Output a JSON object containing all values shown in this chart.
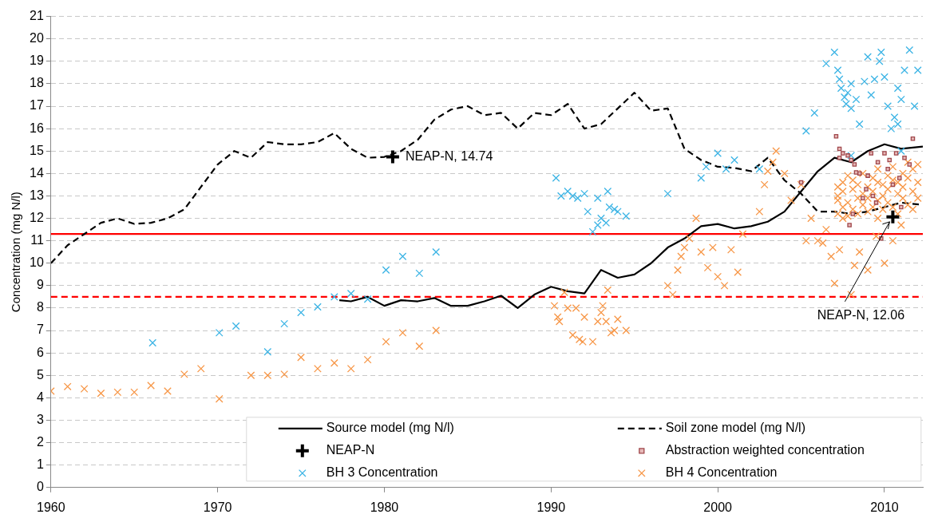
{
  "chart_data": {
    "type": "scatter",
    "ylabel": "Concentration (mg N/l)",
    "xlim": [
      1960,
      2012.3
    ],
    "xticks": [
      1960,
      1970,
      1980,
      1990,
      2000,
      2010
    ],
    "ylim": [
      0,
      21
    ],
    "yticks": [
      0,
      1,
      2,
      3,
      4,
      5,
      6,
      7,
      8,
      9,
      10,
      11,
      12,
      13,
      14,
      15,
      16,
      17,
      18,
      19,
      20,
      21
    ],
    "grid": "y",
    "legend": "bottom",
    "series": [
      {
        "name": "Source model (mg N/l)",
        "type": "line",
        "color": "#000000",
        "line_style": "solid",
        "marker": "none",
        "x": [
          1977.3,
          1978,
          1979,
          1980,
          1981,
          1982,
          1983,
          1984,
          1985,
          1986,
          1987,
          1988,
          1989,
          1990,
          1991,
          1992,
          1993,
          1994,
          1995,
          1996,
          1997,
          1998,
          1999,
          2000,
          2001,
          2002,
          2003,
          2004,
          2005,
          2006,
          2007,
          2008,
          2009,
          2010,
          2011,
          2012.3
        ],
        "values": [
          8.35,
          8.3,
          8.5,
          8.1,
          8.35,
          8.3,
          8.45,
          8.1,
          8.1,
          8.3,
          8.55,
          8.0,
          8.6,
          8.95,
          8.75,
          8.65,
          9.7,
          9.35,
          9.5,
          10.0,
          10.7,
          11.1,
          11.65,
          11.75,
          11.55,
          11.65,
          11.85,
          12.3,
          13.2,
          14.1,
          14.7,
          14.5,
          15.0,
          15.3,
          15.1,
          15.2
        ]
      },
      {
        "name": "Soil zone model (mg N/l)",
        "type": "line",
        "color": "#000000",
        "line_style": "dashed",
        "marker": "none",
        "x": [
          1960,
          1961,
          1962,
          1963,
          1964,
          1965,
          1966,
          1967,
          1968,
          1969,
          1970,
          1971,
          1972,
          1973,
          1974,
          1975,
          1976,
          1977,
          1978,
          1979,
          1980,
          1981,
          1982,
          1983,
          1984,
          1985,
          1986,
          1987,
          1988,
          1989,
          1990,
          1991,
          1992,
          1993,
          1994,
          1995,
          1996,
          1997,
          1998,
          1999,
          2000,
          2001,
          2002,
          2003,
          2004,
          2005,
          2006,
          2007,
          2008,
          2009,
          2010,
          2011,
          2012.3
        ],
        "values": [
          10.0,
          10.8,
          11.3,
          11.8,
          12.0,
          11.75,
          11.8,
          12.0,
          12.4,
          13.4,
          14.4,
          15.0,
          14.7,
          15.4,
          15.3,
          15.3,
          15.4,
          15.8,
          15.1,
          14.7,
          14.74,
          15.0,
          15.5,
          16.4,
          16.85,
          17.0,
          16.6,
          16.7,
          16.0,
          16.7,
          16.6,
          17.1,
          16.0,
          16.2,
          16.9,
          17.6,
          16.8,
          16.9,
          15.1,
          14.6,
          14.3,
          14.25,
          14.1,
          14.7,
          13.7,
          13.1,
          12.3,
          12.3,
          12.2,
          12.3,
          12.5,
          12.7,
          12.6
        ]
      },
      {
        "name": "NEAP-N",
        "type": "scatter",
        "color": "#000000",
        "marker": "cross",
        "x": [
          1980.5,
          2010.5
        ],
        "values": [
          14.74,
          12.06
        ]
      },
      {
        "name": "Abstraction weighted concentration",
        "type": "scatter",
        "color": "#a0474b",
        "marker": "square",
        "x": [
          2007.1,
          2007.3,
          2007.5,
          2007.8,
          2008.0,
          2008.2,
          2007.3,
          2008.5,
          2008.7,
          2009.2,
          2009.6,
          2010.0,
          2010.3,
          2010.7,
          2011.2,
          2011.7,
          2005.0,
          2008.3,
          2007.9,
          2009.3,
          2009.8,
          2010.5,
          2011.0,
          2008.9,
          2009.5,
          2010.2,
          2010.9,
          2011.5,
          2008.1,
          2009.0
        ],
        "values": [
          15.66,
          15.1,
          14.9,
          14.8,
          14.6,
          14.4,
          14.7,
          14.0,
          12.9,
          14.9,
          14.5,
          14.9,
          14.6,
          14.9,
          14.7,
          15.55,
          13.6,
          14.05,
          11.7,
          13.0,
          11.1,
          13.5,
          12.5,
          13.3,
          12.7,
          14.2,
          13.8,
          14.4,
          12.2,
          13.9
        ]
      },
      {
        "name": "BH 3 Concentration",
        "type": "scatter",
        "color": "#3cb4e5",
        "marker": "cross",
        "x": [
          1966.1,
          1970.1,
          1971.1,
          1973,
          1974,
          1975,
          1976,
          1977,
          1978,
          1979,
          1980.1,
          1981.1,
          1982.1,
          1983.1,
          1990.3,
          1990.6,
          1991,
          1991.3,
          1991.6,
          1992,
          1992.2,
          1992.5,
          1992.8,
          1993,
          1993.3,
          1993.5,
          1993.8,
          1993.4,
          1992.8,
          1994.5,
          1994,
          1997,
          1999,
          1999.3,
          2000,
          2000.5,
          2001,
          2002.5,
          2005.3,
          2005.8,
          2006.5,
          2007,
          2007.2,
          2007.3,
          2007.4,
          2007.6,
          2007.7,
          2007.8,
          2008,
          2008,
          2008.3,
          2008.5,
          2008.8,
          2009,
          2009.2,
          2009.4,
          2009.7,
          2009.8,
          2010,
          2010.2,
          2010.4,
          2010.6,
          2010.8,
          2011,
          2011.2,
          2011.5,
          2011.8,
          2012,
          2008,
          2010.8,
          2011
        ],
        "values": [
          6.45,
          6.9,
          7.2,
          6.05,
          7.3,
          7.8,
          8.05,
          8.5,
          8.65,
          8.4,
          9.7,
          10.3,
          9.55,
          10.5,
          13.8,
          13.0,
          13.2,
          13.0,
          12.9,
          13.1,
          12.3,
          11.4,
          11.7,
          12.0,
          11.8,
          12.5,
          12.4,
          13.2,
          12.9,
          12.1,
          12.3,
          13.1,
          13.8,
          14.3,
          14.9,
          14.2,
          14.6,
          14.2,
          15.9,
          16.7,
          18.9,
          19.4,
          18.6,
          18.2,
          17.8,
          17.4,
          17.1,
          17.6,
          16.9,
          18.0,
          17.3,
          16.2,
          18.1,
          19.2,
          17.5,
          18.2,
          19.0,
          19.4,
          18.3,
          17.0,
          16.0,
          16.5,
          17.8,
          17.3,
          18.6,
          19.5,
          17.0,
          18.6,
          14.8,
          16.2,
          15.0
        ]
      },
      {
        "name": "BH 4 Concentration",
        "type": "scatter",
        "color": "#f79646",
        "marker": "cross",
        "x": [
          1960,
          1961,
          1962,
          1963,
          1964,
          1965,
          1966,
          1967,
          1968,
          1969,
          1970.1,
          1972,
          1973,
          1974,
          1975,
          1976,
          1977,
          1978,
          1979,
          1980.1,
          1981.1,
          1982.1,
          1983.1,
          1990.2,
          1990.4,
          1990.5,
          1990.8,
          1991,
          1991.3,
          1991.5,
          1991.7,
          1991.9,
          1992,
          1992.5,
          1992.8,
          1993,
          1993.1,
          1993.3,
          1993.4,
          1993.6,
          1993.8,
          1994,
          1994.5,
          1997,
          1997.3,
          1997.6,
          1997.8,
          1998,
          1998.3,
          1998.7,
          1999,
          1999.4,
          1999.7,
          2000,
          2000.4,
          2000.8,
          2001.2,
          2001.5,
          2002.5,
          2002.8,
          2003,
          2003.3,
          2003.5,
          2004,
          2004.4,
          2005,
          2005.3,
          2005.6,
          2006,
          2006.3,
          2006.5,
          2006.8,
          2007,
          2007.3,
          2007.5,
          2008,
          2008.2,
          2008.5,
          2009,
          2009.5,
          2010,
          2010.5,
          2011,
          2007.2,
          2007.2,
          2007.2,
          2007.2,
          2007.5,
          2007.5,
          2007.5,
          2007.8,
          2007.8,
          2007.8,
          2008.1,
          2008.1,
          2008.1,
          2008.4,
          2008.4,
          2008.4,
          2008.7,
          2008.7,
          2008.7,
          2009.0,
          2009.0,
          2009.0,
          2009.3,
          2009.3,
          2009.3,
          2009.6,
          2009.6,
          2009.6,
          2009.6,
          2009.9,
          2009.9,
          2009.9,
          2010.2,
          2010.2,
          2010.2,
          2010.5,
          2010.5,
          2010.5,
          2010.8,
          2010.8,
          2010.8,
          2011.1,
          2011.1,
          2011.1,
          2011.4,
          2011.4,
          2011.4,
          2011.7,
          2011.7,
          2011.7,
          2012.0,
          2012.0,
          2012.0
        ],
        "values": [
          4.3,
          4.5,
          4.4,
          4.2,
          4.25,
          4.25,
          4.55,
          4.3,
          5.05,
          5.3,
          3.95,
          5.0,
          5.0,
          5.05,
          5.8,
          5.3,
          5.55,
          5.3,
          5.7,
          6.5,
          6.9,
          6.3,
          7.0,
          8.1,
          7.6,
          7.4,
          8.7,
          8.0,
          6.8,
          8.0,
          6.6,
          6.5,
          7.6,
          6.5,
          7.4,
          7.8,
          8.1,
          7.4,
          8.8,
          6.9,
          7.0,
          7.5,
          7.0,
          9.0,
          8.6,
          9.7,
          10.3,
          10.7,
          11.1,
          12.0,
          10.5,
          9.8,
          10.7,
          9.4,
          9.0,
          10.6,
          9.6,
          11.3,
          12.3,
          13.5,
          14.1,
          14.5,
          15.0,
          14.0,
          12.8,
          13.5,
          11.0,
          12.0,
          11.0,
          10.9,
          11.5,
          10.3,
          9.1,
          10.6,
          12.0,
          8.6,
          9.9,
          10.5,
          9.7,
          11.2,
          10.0,
          11.0,
          11.7,
          12.2,
          12.8,
          13.4,
          13.0,
          13.6,
          12.5,
          13.2,
          12.1,
          13.9,
          12.7,
          13.3,
          12.4,
          13.7,
          12.9,
          13.5,
          12.2,
          13.1,
          14.0,
          12.6,
          13.4,
          12.3,
          12.9,
          13.8,
          12.5,
          13.2,
          12.0,
          13.6,
          12.8,
          14.2,
          13.0,
          13.5,
          12.4,
          13.9,
          12.7,
          13.3,
          12.5,
          13.7,
          14.3,
          13.1,
          12.2,
          13.6,
          14.0,
          12.9,
          13.4,
          12.6,
          13.8,
          14.5,
          13.2,
          12.4,
          14.2,
          13.6,
          12.9,
          14.4
        ]
      }
    ],
    "ref_lines": [
      {
        "axis": "y",
        "value": 11.3,
        "color": "#ff0000",
        "line_style": "solid"
      },
      {
        "axis": "y",
        "value": 8.5,
        "color": "#ff0000",
        "line_style": "dashed"
      }
    ],
    "annotations": [
      {
        "text": "NEAP-N, 14.74",
        "x": 1980.5,
        "y": 14.74
      },
      {
        "text": "NEAP-N, 12.06",
        "x": 2010.5,
        "y": 12.06
      }
    ]
  }
}
